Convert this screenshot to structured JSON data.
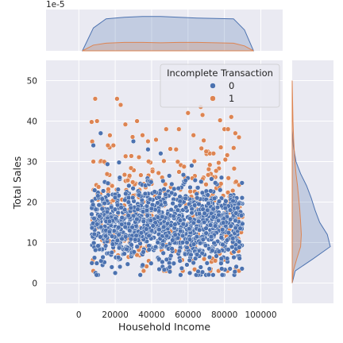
{
  "chart_data": {
    "type": "scatter",
    "subtype": "jointplot-with-kde-marginals",
    "xlabel": "Household Income",
    "ylabel": "Total Sales",
    "xlim": [
      -18000,
      112000
    ],
    "ylim": [
      -5,
      55
    ],
    "x_ticks": [
      0,
      20000,
      40000,
      60000,
      80000,
      100000
    ],
    "x_tick_labels": [
      "0",
      "20000",
      "40000",
      "60000",
      "80000",
      "100000"
    ],
    "y_ticks": [
      0,
      10,
      20,
      30,
      40,
      50
    ],
    "y_tick_labels": [
      "0",
      "10",
      "20",
      "30",
      "40",
      "50"
    ],
    "top_marginal_offset_label": "1e-5",
    "grid": true,
    "legend": {
      "title": "Incomplete Transaction",
      "placement": "top-right",
      "entries": [
        {
          "label": "0",
          "color": "#4c72b0"
        },
        {
          "label": "1",
          "color": "#dd8452"
        }
      ]
    },
    "series": [
      {
        "name": "0",
        "color": "#4c72b0",
        "x_range": [
          7000,
          90000
        ],
        "y_distribution": {
          "mean": 14,
          "sd": 5,
          "range": [
            2,
            37
          ]
        },
        "highlight_points": [
          {
            "x": 8000,
            "y": 34
          },
          {
            "x": 12000,
            "y": 37
          },
          {
            "x": 30000,
            "y": 35
          },
          {
            "x": 38000,
            "y": 33
          },
          {
            "x": 45000,
            "y": 32
          },
          {
            "x": 62000,
            "y": 29
          },
          {
            "x": 20000,
            "y": 2.5
          },
          {
            "x": 61000,
            "y": 2.5
          },
          {
            "x": 50000,
            "y": 2.8
          }
        ]
      },
      {
        "name": "1",
        "color": "#dd8452",
        "x_range": [
          7000,
          90000
        ],
        "y_distribution": {
          "mean": 18,
          "sd": 8,
          "range": [
            3,
            46
          ]
        },
        "highlight_points": [
          {
            "x": 9000,
            "y": 45.5
          },
          {
            "x": 21000,
            "y": 45.5
          },
          {
            "x": 23000,
            "y": 44
          },
          {
            "x": 60000,
            "y": 42
          },
          {
            "x": 67000,
            "y": 43.5
          },
          {
            "x": 68000,
            "y": 41.5
          },
          {
            "x": 10000,
            "y": 40
          },
          {
            "x": 32000,
            "y": 40
          },
          {
            "x": 55000,
            "y": 38
          },
          {
            "x": 48000,
            "y": 38
          },
          {
            "x": 80000,
            "y": 38
          },
          {
            "x": 82000,
            "y": 38
          },
          {
            "x": 38000,
            "y": 35
          },
          {
            "x": 16000,
            "y": 34
          },
          {
            "x": 19000,
            "y": 34
          },
          {
            "x": 35000,
            "y": 36.5
          },
          {
            "x": 63000,
            "y": 36.5
          },
          {
            "x": 86000,
            "y": 37
          },
          {
            "x": 88000,
            "y": 36
          },
          {
            "x": 78000,
            "y": 33.5
          },
          {
            "x": 8000,
            "y": 30
          },
          {
            "x": 72000,
            "y": 32
          },
          {
            "x": 74000,
            "y": 32
          },
          {
            "x": 70000,
            "y": 32.5
          }
        ]
      }
    ],
    "marginal_x_kde": {
      "scale_note": "density values shown in units of 1e-5",
      "series": [
        {
          "name": "0",
          "x": [
            2000,
            8000,
            15000,
            25000,
            35000,
            45000,
            55000,
            65000,
            75000,
            85000,
            91000,
            96000
          ],
          "density": [
            0.0,
            0.6,
            0.84,
            0.88,
            0.9,
            0.9,
            0.88,
            0.86,
            0.85,
            0.84,
            0.55,
            0.0
          ]
        },
        {
          "name": "1",
          "x": [
            2000,
            8000,
            15000,
            25000,
            35000,
            45000,
            55000,
            65000,
            75000,
            85000,
            91000,
            96000
          ],
          "density": [
            0.0,
            0.15,
            0.2,
            0.22,
            0.22,
            0.21,
            0.22,
            0.22,
            0.21,
            0.2,
            0.13,
            0.0
          ]
        }
      ]
    },
    "marginal_y_kde": {
      "series": [
        {
          "name": "0",
          "y": [
            0,
            3,
            6,
            9,
            12,
            15,
            18,
            21,
            24,
            27,
            30,
            34,
            38
          ],
          "density": [
            0.0,
            0.08,
            0.55,
            1.0,
            0.92,
            0.72,
            0.6,
            0.5,
            0.38,
            0.22,
            0.1,
            0.03,
            0.0
          ]
        },
        {
          "name": "1",
          "y": [
            0,
            3,
            6,
            9,
            12,
            15,
            18,
            21,
            24,
            27,
            30,
            35,
            40,
            45,
            50
          ],
          "density": [
            0.0,
            0.03,
            0.12,
            0.22,
            0.24,
            0.22,
            0.2,
            0.17,
            0.14,
            0.1,
            0.07,
            0.04,
            0.02,
            0.01,
            0.0
          ]
        }
      ]
    }
  }
}
